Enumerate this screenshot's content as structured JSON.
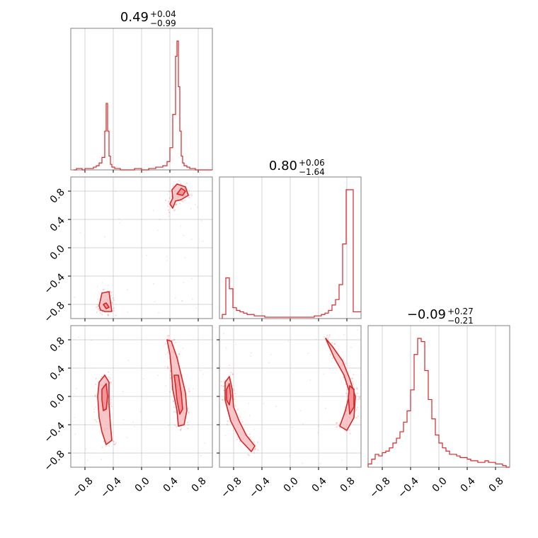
{
  "figure": {
    "color": "#d62728",
    "fill_color": "#f4b6b8",
    "grid": true
  },
  "chart_data": [
    {
      "type": "histogram",
      "panel": "param-1-marginal",
      "title": {
        "value": "0.49",
        "plus": "+0.04",
        "minus": "−0.99"
      },
      "xlim": [
        -1,
        1
      ],
      "bins_x": [
        -0.96,
        -0.92,
        -0.88,
        -0.84,
        -0.8,
        -0.76,
        -0.72,
        -0.68,
        -0.64,
        -0.6,
        -0.56,
        -0.52,
        -0.5,
        -0.48,
        -0.46,
        -0.44,
        -0.42,
        -0.38,
        -0.34,
        -0.3,
        -0.2,
        -0.1,
        0.0,
        0.1,
        0.2,
        0.3,
        0.36,
        0.4,
        0.44,
        0.48,
        0.5,
        0.52,
        0.54,
        0.56,
        0.58,
        0.6,
        0.64,
        0.68,
        0.72,
        0.76,
        0.8
      ],
      "values": [
        0,
        1,
        1,
        0,
        1,
        1,
        1,
        2,
        3,
        5,
        9,
        28,
        48,
        28,
        10,
        4,
        2,
        1,
        1,
        0,
        0,
        1,
        0,
        1,
        2,
        3,
        6,
        16,
        40,
        82,
        93,
        60,
        28,
        10,
        5,
        3,
        2,
        1,
        1,
        0,
        0
      ]
    },
    {
      "type": "scatter",
      "panel": "param-1-vs-param-2",
      "xlim": [
        -1,
        1
      ],
      "ylim": [
        -1,
        1
      ],
      "y_ticks": [
        "0.8",
        "0.4",
        "0.0",
        "−0.4",
        "−0.8"
      ],
      "contours": [
        {
          "level": "outer",
          "points": [
            [
              0.4,
              0.62
            ],
            [
              0.44,
              0.7
            ],
            [
              0.43,
              0.82
            ],
            [
              0.5,
              0.9
            ],
            [
              0.62,
              0.86
            ],
            [
              0.66,
              0.74
            ],
            [
              0.56,
              0.68
            ],
            [
              0.48,
              0.66
            ],
            [
              0.44,
              0.56
            ]
          ]
        },
        {
          "level": "inner",
          "points": [
            [
              0.5,
              0.76
            ],
            [
              0.56,
              0.84
            ],
            [
              0.62,
              0.8
            ],
            [
              0.58,
              0.74
            ]
          ]
        },
        {
          "level": "outer",
          "points": [
            [
              -0.6,
              -0.82
            ],
            [
              -0.56,
              -0.64
            ],
            [
              -0.46,
              -0.62
            ],
            [
              -0.44,
              -0.76
            ],
            [
              -0.42,
              -0.9
            ],
            [
              -0.52,
              -0.9
            ],
            [
              -0.58,
              -0.88
            ]
          ]
        },
        {
          "level": "inner",
          "points": [
            [
              -0.54,
              -0.8
            ],
            [
              -0.5,
              -0.86
            ],
            [
              -0.46,
              -0.84
            ],
            [
              -0.5,
              -0.78
            ]
          ]
        }
      ]
    },
    {
      "type": "histogram",
      "panel": "param-2-marginal",
      "title": {
        "value": "0.80",
        "plus": "+0.06",
        "minus": "−1.64"
      },
      "xlim": [
        -1,
        1
      ],
      "bins_x": [
        -0.96,
        -0.91,
        -0.86,
        -0.81,
        -0.76,
        -0.71,
        -0.66,
        -0.61,
        -0.56,
        -0.51,
        -0.46,
        -0.41,
        -0.36,
        -0.31,
        -0.26,
        -0.21,
        -0.16,
        -0.11,
        -0.06,
        -0.01,
        0.04,
        0.09,
        0.14,
        0.19,
        0.24,
        0.29,
        0.34,
        0.39,
        0.44,
        0.49,
        0.54,
        0.59,
        0.64,
        0.69,
        0.74,
        0.79,
        0.84,
        0.89
      ],
      "values": [
        3,
        30,
        22,
        8,
        6,
        5,
        4,
        3,
        3,
        2,
        2,
        2,
        1,
        1,
        1,
        1,
        1,
        1,
        1,
        1,
        1,
        1,
        1,
        1,
        1,
        1,
        2,
        2,
        3,
        4,
        6,
        10,
        14,
        25,
        55,
        95,
        95,
        5
      ]
    },
    {
      "type": "scatter",
      "panel": "param-1-vs-param-3",
      "xlim": [
        -1,
        1
      ],
      "ylim": [
        -1,
        1
      ],
      "x_ticks": [
        "−0.8",
        "−0.4",
        "0.0",
        "0.4",
        "0.8"
      ],
      "y_ticks": [
        "0.8",
        "0.4",
        "0.0",
        "−0.4",
        "−0.8"
      ],
      "contours": [
        {
          "level": "outer",
          "points": [
            [
              -0.6,
              0.2
            ],
            [
              -0.52,
              0.3
            ],
            [
              -0.46,
              0.2
            ],
            [
              -0.46,
              -0.1
            ],
            [
              -0.44,
              -0.4
            ],
            [
              -0.42,
              -0.62
            ],
            [
              -0.5,
              -0.68
            ],
            [
              -0.56,
              -0.5
            ],
            [
              -0.6,
              -0.3
            ],
            [
              -0.62,
              0.0
            ]
          ]
        },
        {
          "level": "inner",
          "points": [
            [
              -0.56,
              0.1
            ],
            [
              -0.5,
              0.18
            ],
            [
              -0.48,
              0.0
            ],
            [
              -0.5,
              -0.18
            ],
            [
              -0.54,
              -0.2
            ],
            [
              -0.56,
              -0.05
            ]
          ]
        },
        {
          "level": "outer",
          "points": [
            [
              0.36,
              0.8
            ],
            [
              0.42,
              0.78
            ],
            [
              0.5,
              0.55
            ],
            [
              0.56,
              0.3
            ],
            [
              0.62,
              0.05
            ],
            [
              0.64,
              -0.2
            ],
            [
              0.6,
              -0.4
            ],
            [
              0.52,
              -0.42
            ],
            [
              0.5,
              -0.2
            ],
            [
              0.44,
              0.1
            ],
            [
              0.42,
              0.4
            ],
            [
              0.4,
              0.6
            ]
          ]
        },
        {
          "level": "inner",
          "points": [
            [
              0.46,
              0.3
            ],
            [
              0.52,
              0.3
            ],
            [
              0.56,
              0.05
            ],
            [
              0.58,
              -0.18
            ],
            [
              0.54,
              -0.25
            ],
            [
              0.5,
              -0.05
            ],
            [
              0.48,
              0.15
            ]
          ]
        }
      ]
    },
    {
      "type": "scatter",
      "panel": "param-2-vs-param-3",
      "xlim": [
        -1,
        1
      ],
      "ylim": [
        -1,
        1
      ],
      "x_ticks": [
        "−0.8",
        "−0.4",
        "0.0",
        "0.4",
        "0.8"
      ],
      "contours": [
        {
          "level": "outer",
          "points": [
            [
              -0.92,
              0.2
            ],
            [
              -0.86,
              0.28
            ],
            [
              -0.82,
              0.1
            ],
            [
              -0.8,
              -0.15
            ],
            [
              -0.72,
              -0.35
            ],
            [
              -0.62,
              -0.55
            ],
            [
              -0.5,
              -0.7
            ],
            [
              -0.55,
              -0.78
            ],
            [
              -0.7,
              -0.62
            ],
            [
              -0.84,
              -0.35
            ],
            [
              -0.92,
              -0.05
            ]
          ]
        },
        {
          "level": "inner",
          "points": [
            [
              -0.9,
              0.1
            ],
            [
              -0.86,
              0.18
            ],
            [
              -0.84,
              0.0
            ],
            [
              -0.86,
              -0.12
            ],
            [
              -0.9,
              -0.05
            ]
          ]
        },
        {
          "level": "outer",
          "points": [
            [
              0.5,
              0.82
            ],
            [
              0.6,
              0.7
            ],
            [
              0.74,
              0.5
            ],
            [
              0.84,
              0.25
            ],
            [
              0.92,
              0.0
            ],
            [
              0.9,
              -0.3
            ],
            [
              0.8,
              -0.48
            ],
            [
              0.7,
              -0.42
            ],
            [
              0.78,
              -0.2
            ],
            [
              0.84,
              0.05
            ],
            [
              0.76,
              0.3
            ],
            [
              0.62,
              0.55
            ]
          ]
        },
        {
          "level": "inner",
          "points": [
            [
              0.84,
              0.15
            ],
            [
              0.9,
              0.1
            ],
            [
              0.9,
              -0.15
            ],
            [
              0.84,
              -0.25
            ],
            [
              0.82,
              0.0
            ]
          ]
        }
      ]
    },
    {
      "type": "histogram",
      "panel": "param-3-marginal",
      "title": {
        "value": "−0.09",
        "plus": "+0.27",
        "minus": "−0.21"
      },
      "xlim": [
        -1,
        1
      ],
      "x_ticks": [
        "−0.8",
        "−0.4",
        "0.0",
        "0.4",
        "0.8"
      ],
      "bins_x": [
        -1.0,
        -0.95,
        -0.9,
        -0.85,
        -0.8,
        -0.75,
        -0.7,
        -0.65,
        -0.6,
        -0.55,
        -0.5,
        -0.45,
        -0.4,
        -0.35,
        -0.3,
        -0.25,
        -0.2,
        -0.15,
        -0.1,
        -0.05,
        0.0,
        0.05,
        0.1,
        0.15,
        0.2,
        0.25,
        0.3,
        0.35,
        0.4,
        0.45,
        0.5,
        0.55,
        0.6,
        0.65,
        0.7,
        0.75,
        0.8,
        0.85,
        0.9,
        0.95
      ],
      "values": [
        2,
        5,
        8,
        7,
        9,
        10,
        12,
        15,
        18,
        22,
        28,
        35,
        48,
        70,
        80,
        78,
        60,
        42,
        30,
        20,
        15,
        12,
        10,
        8,
        8,
        7,
        6,
        6,
        5,
        4,
        4,
        3,
        3,
        4,
        3,
        3,
        2,
        2,
        1,
        0
      ]
    }
  ]
}
